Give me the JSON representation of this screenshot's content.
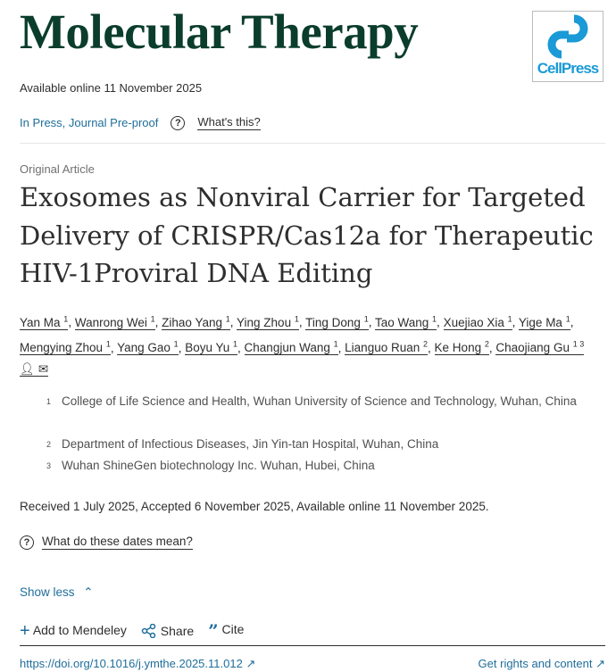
{
  "header": {
    "journal": "Molecular Therapy",
    "publisher_logo": "CellPress",
    "available_online": "Available online 11 November 2025",
    "status": "In Press, Journal Pre-proof",
    "whats_this": "What's this?"
  },
  "article": {
    "type": "Original Article",
    "title": "Exosomes as Nonviral Carrier for Targeted Delivery of CRISPR/Cas12a for Therapeutic HIV-1Proviral DNA Editing",
    "authors": [
      {
        "name": "Yan Ma",
        "sup": "1"
      },
      {
        "name": "Wanrong Wei",
        "sup": "1"
      },
      {
        "name": "Zihao Yang",
        "sup": "1"
      },
      {
        "name": "Ying Zhou",
        "sup": "1"
      },
      {
        "name": "Ting Dong",
        "sup": "1"
      },
      {
        "name": "Tao Wang",
        "sup": "1"
      },
      {
        "name": "Xuejiao Xia",
        "sup": "1"
      },
      {
        "name": "Yige Ma",
        "sup": "1"
      },
      {
        "name": "Mengying Zhou",
        "sup": "1"
      },
      {
        "name": "Yang Gao",
        "sup": "1"
      },
      {
        "name": "Boyu Yu",
        "sup": "1"
      },
      {
        "name": "Changjun Wang",
        "sup": "1"
      },
      {
        "name": "Lianguo Ruan",
        "sup": "2"
      },
      {
        "name": "Ke Hong",
        "sup": "2"
      },
      {
        "name": "Chaojiang Gu",
        "sup": "1 3"
      }
    ],
    "affiliations": [
      {
        "sup": "1",
        "text": "College of Life Science and Health, Wuhan University of Science and Technology, Wuhan, China"
      },
      {
        "sup": "2",
        "text": "Department of Infectious Diseases, Jin Yin-tan Hospital, Wuhan, China"
      },
      {
        "sup": "3",
        "text": "Wuhan ShineGen biotechnology Inc. Wuhan, Hubei, China"
      }
    ],
    "dates": "Received 1 July 2025, Accepted 6 November 2025, Available online 11 November 2025.",
    "dates_help": "What do these dates mean?",
    "show_less": "Show less"
  },
  "actions": {
    "mendeley": "Add to Mendeley",
    "share": "Share",
    "cite": "Cite"
  },
  "footer": {
    "doi": "https://doi.org/10.1016/j.ymthe.2025.11.012",
    "rights": "Get rights and content"
  },
  "colors": {
    "journal": "#0b3d2c",
    "link": "#1f6e9a",
    "cellpress": "#1a9ad6"
  }
}
